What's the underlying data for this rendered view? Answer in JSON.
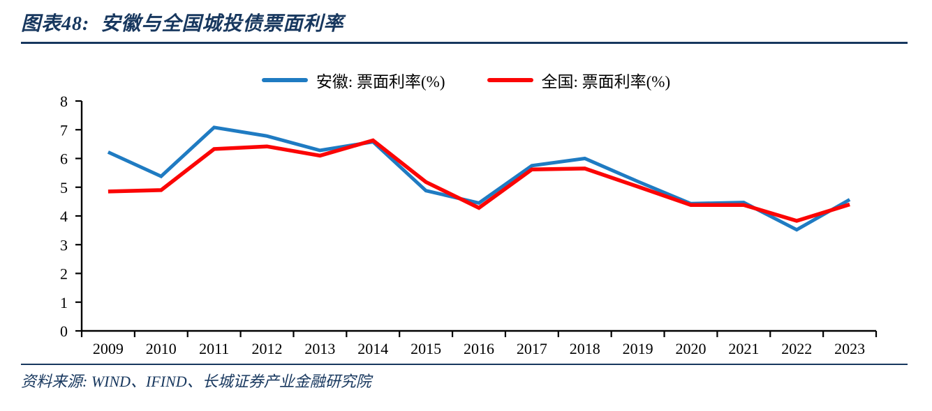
{
  "header": {
    "title": "图表48:  安徽与全国城投债票面利率"
  },
  "source": "资料来源: WIND、IFIND、长城证券产业金融研究院",
  "colors": {
    "accent_navy": "#17375E",
    "axis_black": "#000000",
    "anhui_blue": "#1F7BC2",
    "national_red": "#FB0505"
  },
  "chart_data": {
    "type": "line",
    "title": "安徽与全国城投债票面利率",
    "categories": [
      "2009",
      "2010",
      "2011",
      "2012",
      "2013",
      "2014",
      "2015",
      "2016",
      "2017",
      "2018",
      "2019",
      "2020",
      "2021",
      "2022",
      "2023"
    ],
    "series": [
      {
        "name": "安徽: 票面利率(%)",
        "color": "#1F7BC2",
        "values": [
          6.22,
          5.38,
          7.08,
          6.78,
          6.28,
          6.58,
          4.88,
          4.45,
          5.75,
          6.0,
          5.2,
          4.43,
          4.47,
          3.52,
          4.57
        ]
      },
      {
        "name": "全国: 票面利率(%)",
        "color": "#FB0505",
        "values": [
          4.85,
          4.9,
          6.33,
          6.42,
          6.1,
          6.63,
          5.18,
          4.28,
          5.62,
          5.65,
          5.02,
          4.38,
          4.38,
          3.83,
          4.4
        ]
      }
    ],
    "ylim": [
      0,
      8
    ],
    "ytick_step": 1,
    "yticks": [
      "0",
      "1",
      "2",
      "3",
      "4",
      "5",
      "6",
      "7",
      "8"
    ],
    "grid": false,
    "legend_position": "top"
  }
}
